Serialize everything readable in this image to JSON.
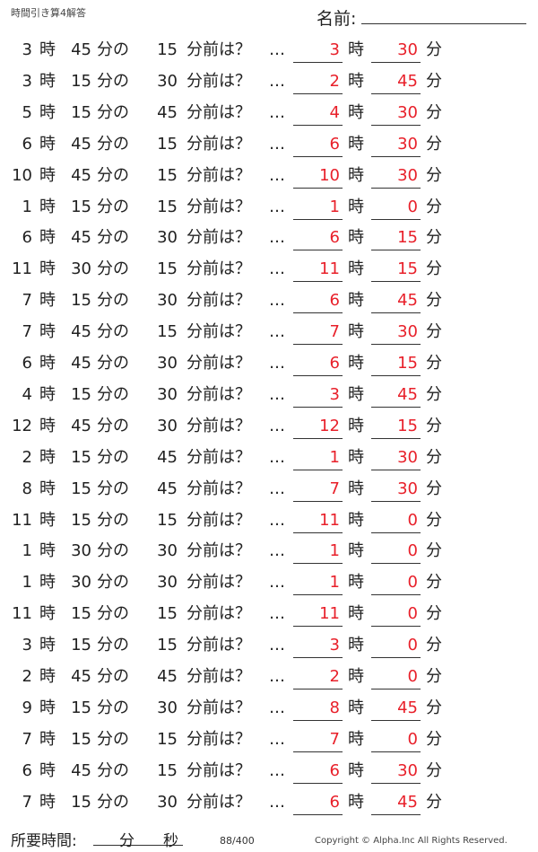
{
  "header": {
    "title": "時間引き算4解答",
    "name_label": "名前:"
  },
  "labels": {
    "hour": "時",
    "min_of": "分の",
    "min_before": "分前は？",
    "dots": "…",
    "min": "分"
  },
  "answer_color": "#e8202a",
  "problems": [
    {
      "h": "3",
      "m": "45",
      "s": "15",
      "ah": "3",
      "am": "30"
    },
    {
      "h": "3",
      "m": "15",
      "s": "30",
      "ah": "2",
      "am": "45"
    },
    {
      "h": "5",
      "m": "15",
      "s": "45",
      "ah": "4",
      "am": "30"
    },
    {
      "h": "6",
      "m": "45",
      "s": "15",
      "ah": "6",
      "am": "30"
    },
    {
      "h": "10",
      "m": "45",
      "s": "15",
      "ah": "10",
      "am": "30"
    },
    {
      "h": "1",
      "m": "15",
      "s": "15",
      "ah": "1",
      "am": "0"
    },
    {
      "h": "6",
      "m": "45",
      "s": "30",
      "ah": "6",
      "am": "15"
    },
    {
      "h": "11",
      "m": "30",
      "s": "15",
      "ah": "11",
      "am": "15"
    },
    {
      "h": "7",
      "m": "15",
      "s": "30",
      "ah": "6",
      "am": "45"
    },
    {
      "h": "7",
      "m": "45",
      "s": "15",
      "ah": "7",
      "am": "30"
    },
    {
      "h": "6",
      "m": "45",
      "s": "30",
      "ah": "6",
      "am": "15"
    },
    {
      "h": "4",
      "m": "15",
      "s": "30",
      "ah": "3",
      "am": "45"
    },
    {
      "h": "12",
      "m": "45",
      "s": "30",
      "ah": "12",
      "am": "15"
    },
    {
      "h": "2",
      "m": "15",
      "s": "45",
      "ah": "1",
      "am": "30"
    },
    {
      "h": "8",
      "m": "15",
      "s": "45",
      "ah": "7",
      "am": "30"
    },
    {
      "h": "11",
      "m": "15",
      "s": "15",
      "ah": "11",
      "am": "0"
    },
    {
      "h": "1",
      "m": "30",
      "s": "30",
      "ah": "1",
      "am": "0"
    },
    {
      "h": "1",
      "m": "30",
      "s": "30",
      "ah": "1",
      "am": "0"
    },
    {
      "h": "11",
      "m": "15",
      "s": "15",
      "ah": "11",
      "am": "0"
    },
    {
      "h": "3",
      "m": "15",
      "s": "15",
      "ah": "3",
      "am": "0"
    },
    {
      "h": "2",
      "m": "45",
      "s": "45",
      "ah": "2",
      "am": "0"
    },
    {
      "h": "9",
      "m": "15",
      "s": "30",
      "ah": "8",
      "am": "45"
    },
    {
      "h": "7",
      "m": "15",
      "s": "15",
      "ah": "7",
      "am": "0"
    },
    {
      "h": "6",
      "m": "45",
      "s": "15",
      "ah": "6",
      "am": "30"
    },
    {
      "h": "7",
      "m": "15",
      "s": "30",
      "ah": "6",
      "am": "45"
    }
  ],
  "footer": {
    "time_label": "所要時間:",
    "min_label": "分",
    "sec_label": "秒",
    "page": "88/400",
    "copyright": "Copyright ©  Alpha.Inc All Rights Reserved."
  }
}
